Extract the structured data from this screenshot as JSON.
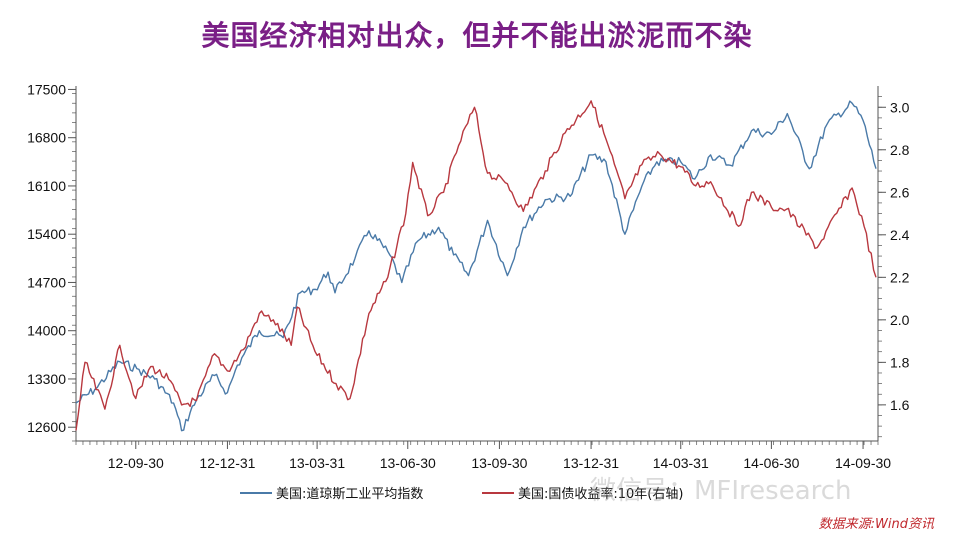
{
  "title": "美国经济相对出众，但并不能出淤泥而不染",
  "source": "数据来源:Wind资讯",
  "watermark": "微信号：MFIresearch",
  "colors": {
    "title": "#7a1f86",
    "dow": "#4a7aa8",
    "treasury": "#b8383f",
    "axis": "#555555"
  },
  "chart_data": {
    "type": "line",
    "xlabels": [
      "12-09-30",
      "12-12-31",
      "13-03-31",
      "13-06-30",
      "13-09-30",
      "13-12-31",
      "14-03-31",
      "14-06-30",
      "14-09-30"
    ],
    "x_range": [
      "2012-08-01",
      "2014-10-15"
    ],
    "y_left": {
      "lim": [
        12400,
        17550
      ],
      "ticks": [
        12600,
        13300,
        14000,
        14700,
        15400,
        16100,
        16800,
        17500
      ]
    },
    "y_right": {
      "lim": [
        1.43,
        3.1
      ],
      "ticks": [
        1.6,
        1.8,
        2.0,
        2.2,
        2.4,
        2.6,
        2.8,
        3.0
      ]
    },
    "series": [
      {
        "name": "美国:道琼斯工业平均指数",
        "axis": "left",
        "points": [
          [
            "2012-08-01",
            12950
          ],
          [
            "2012-08-20",
            13150
          ],
          [
            "2012-09-14",
            13550
          ],
          [
            "2012-10-01",
            13450
          ],
          [
            "2012-10-19",
            13300
          ],
          [
            "2012-11-07",
            12950
          ],
          [
            "2012-11-15",
            12550
          ],
          [
            "2012-11-30",
            13000
          ],
          [
            "2012-12-18",
            13350
          ],
          [
            "2012-12-31",
            13100
          ],
          [
            "2013-01-10",
            13500
          ],
          [
            "2013-02-01",
            14000
          ],
          [
            "2013-02-25",
            13900
          ],
          [
            "2013-03-14",
            14550
          ],
          [
            "2013-03-29",
            14600
          ],
          [
            "2013-04-11",
            14850
          ],
          [
            "2013-04-18",
            14550
          ],
          [
            "2013-05-08",
            15050
          ],
          [
            "2013-05-22",
            15450
          ],
          [
            "2013-06-12",
            15100
          ],
          [
            "2013-06-24",
            14700
          ],
          [
            "2013-07-10",
            15300
          ],
          [
            "2013-07-31",
            15500
          ],
          [
            "2013-08-15",
            15100
          ],
          [
            "2013-08-30",
            14800
          ],
          [
            "2013-09-18",
            15600
          ],
          [
            "2013-10-08",
            14800
          ],
          [
            "2013-10-24",
            15500
          ],
          [
            "2013-11-15",
            15900
          ],
          [
            "2013-12-10",
            15950
          ],
          [
            "2013-12-31",
            16550
          ],
          [
            "2014-01-15",
            16450
          ],
          [
            "2014-02-03",
            15400
          ],
          [
            "2014-02-20",
            16100
          ],
          [
            "2014-03-07",
            16450
          ],
          [
            "2014-03-31",
            16450
          ],
          [
            "2014-04-14",
            16200
          ],
          [
            "2014-04-30",
            16550
          ],
          [
            "2014-05-20",
            16400
          ],
          [
            "2014-06-10",
            16900
          ],
          [
            "2014-06-30",
            16850
          ],
          [
            "2014-07-16",
            17150
          ],
          [
            "2014-08-07",
            16350
          ],
          [
            "2014-08-25",
            17000
          ],
          [
            "2014-09-19",
            17300
          ],
          [
            "2014-09-30",
            17050
          ],
          [
            "2014-10-13",
            16350
          ]
        ]
      },
      {
        "name": "美国:国债收益率:10年(右轴)",
        "axis": "right",
        "points": [
          [
            "2012-08-01",
            1.48
          ],
          [
            "2012-08-10",
            1.8
          ],
          [
            "2012-08-30",
            1.58
          ],
          [
            "2012-09-14",
            1.88
          ],
          [
            "2012-09-30",
            1.63
          ],
          [
            "2012-10-15",
            1.78
          ],
          [
            "2012-11-02",
            1.72
          ],
          [
            "2012-11-15",
            1.6
          ],
          [
            "2012-11-30",
            1.62
          ],
          [
            "2012-12-18",
            1.84
          ],
          [
            "2012-12-31",
            1.76
          ],
          [
            "2013-01-16",
            1.86
          ],
          [
            "2013-02-01",
            2.03
          ],
          [
            "2013-02-15",
            2.0
          ],
          [
            "2013-03-05",
            1.88
          ],
          [
            "2013-03-11",
            2.06
          ],
          [
            "2013-03-29",
            1.85
          ],
          [
            "2013-04-19",
            1.7
          ],
          [
            "2013-05-03",
            1.63
          ],
          [
            "2013-05-22",
            2.03
          ],
          [
            "2013-06-10",
            2.2
          ],
          [
            "2013-06-28",
            2.5
          ],
          [
            "2013-07-05",
            2.74
          ],
          [
            "2013-07-20",
            2.49
          ],
          [
            "2013-08-05",
            2.6
          ],
          [
            "2013-08-20",
            2.82
          ],
          [
            "2013-09-05",
            3.0
          ],
          [
            "2013-09-18",
            2.69
          ],
          [
            "2013-10-08",
            2.64
          ],
          [
            "2013-10-24",
            2.51
          ],
          [
            "2013-11-15",
            2.7
          ],
          [
            "2013-12-05",
            2.88
          ],
          [
            "2013-12-31",
            3.03
          ],
          [
            "2014-01-15",
            2.85
          ],
          [
            "2014-02-03",
            2.57
          ],
          [
            "2014-02-20",
            2.73
          ],
          [
            "2014-03-10",
            2.78
          ],
          [
            "2014-03-31",
            2.72
          ],
          [
            "2014-04-15",
            2.63
          ],
          [
            "2014-04-30",
            2.65
          ],
          [
            "2014-05-28",
            2.44
          ],
          [
            "2014-06-10",
            2.6
          ],
          [
            "2014-06-30",
            2.53
          ],
          [
            "2014-07-15",
            2.52
          ],
          [
            "2014-08-15",
            2.34
          ],
          [
            "2014-09-19",
            2.62
          ],
          [
            "2014-10-01",
            2.44
          ],
          [
            "2014-10-13",
            2.2
          ]
        ]
      }
    ],
    "legend_position": "bottom"
  }
}
